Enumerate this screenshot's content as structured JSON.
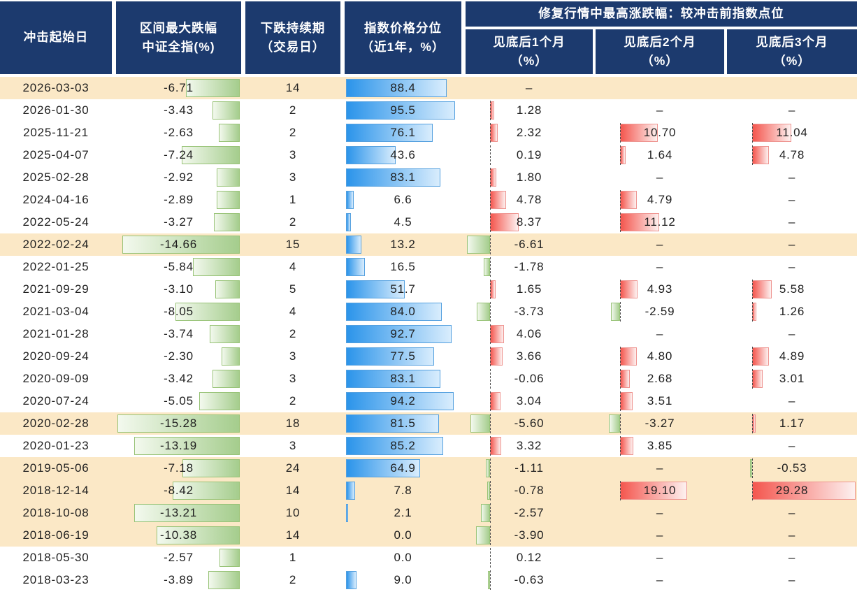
{
  "header": {
    "col1": "冲击起始日",
    "col2": [
      "区间最大跌幅",
      "中证全指(%)"
    ],
    "col3": [
      "下跌持续期",
      "（交易日）"
    ],
    "col4": [
      "指数价格分位",
      "（近1年，%）"
    ],
    "group": "修复行情中最高涨跌幅：较冲击前指数点位",
    "sub1": [
      "见底后1个月",
      "（%）"
    ],
    "sub2": [
      "见底后2个月",
      "（%）"
    ],
    "sub3": [
      "见底后3个月",
      "（%）"
    ]
  },
  "colors": {
    "header_bg": "#1C3A6E",
    "header_text": "#FFFFFF",
    "highlight_row_bg": "#FBE8C6",
    "text": "#1F1F1F",
    "green_bar_from": "#F3F9EE",
    "green_bar_to": "#A5CD8D",
    "green_bar_border": "#98C377",
    "blue_bar_from": "#2B94EA",
    "blue_bar_to": "#D9EDFD",
    "blue_bar_border": "#54A0DF",
    "red_bar_from": "#F4564E",
    "red_bar_to": "#FDF1F0",
    "red_bar_border": "#EE9490",
    "axis_line": "#4D4D4D"
  },
  "chart_data": {
    "type": "table",
    "group_header": "修复行情中最高涨跌幅：较冲击前指数点位",
    "columns": [
      "冲击起始日",
      "区间最大跌幅 中证全指(%)",
      "下跌持续期（交易日）",
      "指数价格分位（近1年，%）",
      "见底后1个月（%）",
      "见底后2个月（%）",
      "见底后3个月（%）"
    ],
    "percentile_range": [
      0,
      100
    ],
    "rows": [
      {
        "highlight": true,
        "values": [
          "2026-03-03",
          "-6.71",
          "14",
          "88.4",
          "–",
          "",
          ""
        ]
      },
      {
        "highlight": false,
        "values": [
          "2026-01-30",
          "-3.43",
          "2",
          "95.5",
          "1.28",
          "–",
          "–"
        ]
      },
      {
        "highlight": false,
        "values": [
          "2025-11-21",
          "-2.63",
          "2",
          "76.1",
          "2.32",
          "10.70",
          "11.04"
        ]
      },
      {
        "highlight": false,
        "values": [
          "2025-04-07",
          "-7.24",
          "3",
          "43.6",
          "0.19",
          "1.64",
          "4.78"
        ]
      },
      {
        "highlight": false,
        "values": [
          "2025-02-28",
          "-2.92",
          "3",
          "83.1",
          "1.80",
          "–",
          "–"
        ]
      },
      {
        "highlight": false,
        "values": [
          "2024-04-16",
          "-2.89",
          "1",
          "6.6",
          "4.78",
          "4.79",
          "–"
        ]
      },
      {
        "highlight": false,
        "values": [
          "2022-05-24",
          "-3.27",
          "2",
          "4.5",
          "8.37",
          "11.12",
          "–"
        ]
      },
      {
        "highlight": true,
        "values": [
          "2022-02-24",
          "-14.66",
          "15",
          "13.2",
          "-6.61",
          "–",
          "–"
        ]
      },
      {
        "highlight": false,
        "values": [
          "2022-01-25",
          "-5.84",
          "4",
          "16.5",
          "-1.78",
          "–",
          "–"
        ]
      },
      {
        "highlight": false,
        "values": [
          "2021-09-29",
          "-3.10",
          "5",
          "51.7",
          "1.65",
          "4.93",
          "5.58"
        ]
      },
      {
        "highlight": false,
        "values": [
          "2021-03-04",
          "-8.05",
          "4",
          "84.0",
          "-3.73",
          "-2.59",
          "1.26"
        ]
      },
      {
        "highlight": false,
        "values": [
          "2021-01-28",
          "-3.74",
          "2",
          "92.7",
          "4.06",
          "–",
          "–"
        ]
      },
      {
        "highlight": false,
        "values": [
          "2020-09-24",
          "-2.30",
          "3",
          "77.5",
          "3.66",
          "4.80",
          "4.89"
        ]
      },
      {
        "highlight": false,
        "values": [
          "2020-09-09",
          "-3.42",
          "3",
          "83.1",
          "-0.06",
          "2.68",
          "3.01"
        ]
      },
      {
        "highlight": false,
        "values": [
          "2020-07-24",
          "-5.05",
          "2",
          "94.2",
          "3.04",
          "3.51",
          "–"
        ]
      },
      {
        "highlight": true,
        "values": [
          "2020-02-28",
          "-15.28",
          "18",
          "81.5",
          "-5.60",
          "-3.27",
          "1.17"
        ]
      },
      {
        "highlight": false,
        "values": [
          "2020-01-23",
          "-13.19",
          "3",
          "85.2",
          "3.32",
          "3.85",
          "–"
        ]
      },
      {
        "highlight": true,
        "values": [
          "2019-05-06",
          "-7.18",
          "24",
          "64.9",
          "-1.11",
          "–",
          "-0.53"
        ]
      },
      {
        "highlight": true,
        "values": [
          "2018-12-14",
          "-8.42",
          "14",
          "7.8",
          "-0.78",
          "19.10",
          "29.28"
        ]
      },
      {
        "highlight": true,
        "values": [
          "2018-10-08",
          "-13.21",
          "10",
          "2.1",
          "-2.57",
          "–",
          "–"
        ]
      },
      {
        "highlight": true,
        "values": [
          "2018-06-19",
          "-10.38",
          "14",
          "0.0",
          "-3.90",
          "–",
          "–"
        ]
      },
      {
        "highlight": false,
        "values": [
          "2018-05-30",
          "-2.57",
          "1",
          "0.0",
          "0.12",
          "–",
          "–"
        ]
      },
      {
        "highlight": false,
        "values": [
          "2018-03-23",
          "-3.89",
          "2",
          "9.0",
          "-0.63",
          "–",
          "–"
        ]
      }
    ]
  }
}
